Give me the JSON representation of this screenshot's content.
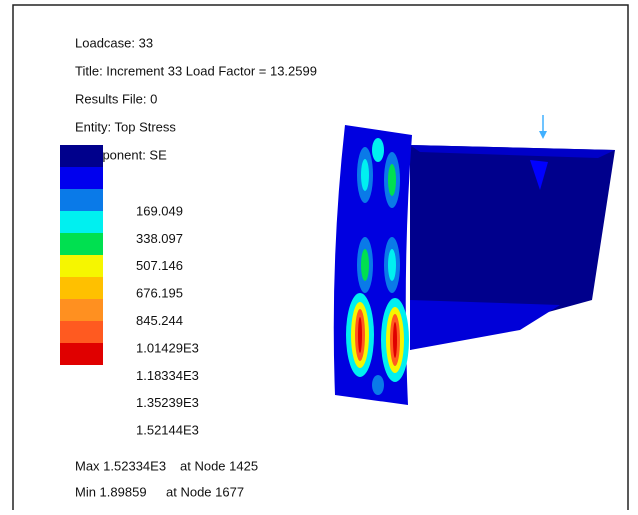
{
  "header": {
    "lines": [
      "Loadcase: 33",
      "Title: Increment 33 Load Factor = 13.2599",
      "Results File: 0",
      "Entity: Top Stress",
      "Component: SE"
    ]
  },
  "legend": {
    "labels": [
      "169.049",
      "338.097",
      "507.146",
      "676.195",
      "845.244",
      "1.01429E3",
      "1.18334E3",
      "1.35239E3",
      "1.52144E3"
    ]
  },
  "extremes": {
    "max": {
      "label": "Max 1.52334E3",
      "node": "at Node 1425"
    },
    "min": {
      "label": "Min 1.89859",
      "node": "at Node 1677"
    }
  }
}
